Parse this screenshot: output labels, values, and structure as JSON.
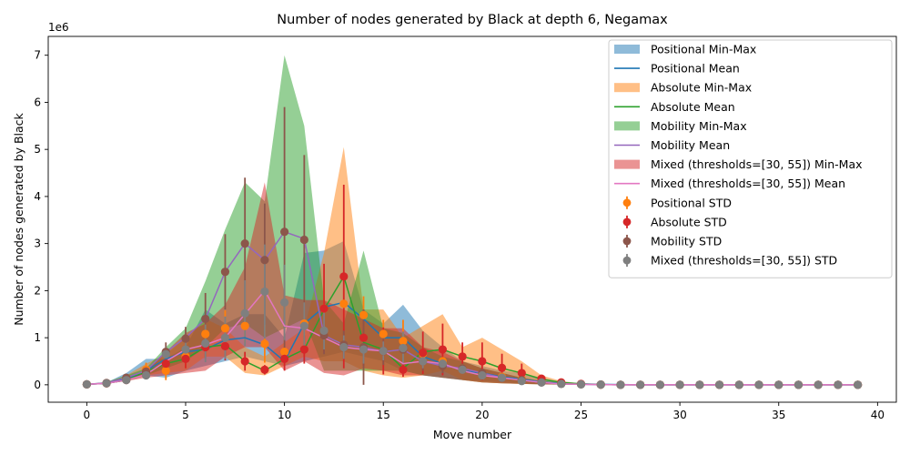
{
  "chart_data": {
    "type": "line",
    "title": "Number of nodes generated by Black at depth 6, Negamax",
    "xlabel": "Move number",
    "ylabel": "Number of nodes generated by Black",
    "y_multiplier_label": "1e6",
    "xlim": [
      -1.95,
      40.95
    ],
    "ylim": [
      -0.37,
      7.4
    ],
    "x_ticks": [
      0,
      5,
      10,
      15,
      20,
      25,
      30,
      35,
      40
    ],
    "y_ticks": [
      0,
      1,
      2,
      3,
      4,
      5,
      6,
      7
    ],
    "legend_position": "upper right",
    "grid": false,
    "x": [
      0,
      1,
      2,
      3,
      4,
      5,
      6,
      7,
      8,
      9,
      10,
      11,
      12,
      13,
      14,
      15,
      16,
      17,
      18,
      19,
      20,
      21,
      22,
      23,
      24,
      25,
      26,
      27,
      28,
      29,
      30,
      31,
      32,
      33,
      34,
      35,
      36,
      37,
      38,
      39
    ],
    "series": [
      {
        "name": "Positional",
        "min_max_label": "Positional Min-Max",
        "mean_label": "Positional Mean",
        "std_label": "Positional STD",
        "band_color": "#1f77b4",
        "line_color": "#1f77b4",
        "marker_color": "#ff7f0e",
        "errbar_color": "#ff7f0e",
        "mean": [
          0.01,
          0.03,
          0.12,
          0.3,
          0.55,
          0.7,
          0.75,
          0.95,
          1.0,
          0.85,
          0.5,
          1.3,
          1.65,
          1.75,
          1.4,
          1.0,
          1.0,
          0.6,
          0.45,
          0.3,
          0.25,
          0.17,
          0.12,
          0.06,
          0.03,
          0.02,
          0.01,
          0.005,
          0,
          0,
          0,
          0,
          0,
          0,
          0,
          0,
          0,
          0,
          0,
          0
        ],
        "min": [
          0.005,
          0.02,
          0.08,
          0.2,
          0.15,
          0.3,
          0.4,
          0.5,
          0.6,
          0.5,
          0.4,
          0.5,
          0.6,
          0.7,
          0.6,
          0.5,
          0.3,
          0.2,
          0.15,
          0.1,
          0.08,
          0.05,
          0.03,
          0.01,
          0.005,
          0,
          0,
          0,
          0,
          0,
          0,
          0,
          0,
          0,
          0,
          0,
          0,
          0,
          0,
          0
        ],
        "max": [
          0.02,
          0.05,
          0.25,
          0.55,
          0.55,
          0.8,
          1.6,
          1.3,
          1.5,
          1.5,
          1.0,
          2.8,
          2.85,
          3.05,
          1.6,
          1.3,
          1.7,
          1.15,
          0.8,
          0.5,
          0.4,
          0.3,
          0.25,
          0.15,
          0.06,
          0.03,
          0.02,
          0.01,
          0,
          0,
          0,
          0,
          0,
          0,
          0,
          0,
          0,
          0,
          0,
          0
        ],
        "std_center": [
          0.01,
          0.03,
          0.12,
          0.32,
          0.3,
          0.6,
          1.08,
          1.2,
          1.25,
          0.87,
          0.7,
          1.3,
          1.62,
          1.72,
          1.48,
          1.08,
          0.93,
          0.66,
          0.5,
          0.35,
          0.23,
          0.17,
          0.12,
          0.06,
          0.03,
          0.015,
          0.005,
          0,
          0,
          0,
          0,
          0,
          0,
          0,
          0,
          0,
          0,
          0,
          0,
          0
        ],
        "std": [
          0.005,
          0.01,
          0.05,
          0.15,
          0.2,
          0.25,
          0.25,
          0.38,
          0.35,
          0.4,
          0.3,
          0.6,
          0.6,
          0.3,
          0.4,
          0.3,
          0.45,
          0.3,
          0.15,
          0.1,
          0.08,
          0.05,
          0.04,
          0.02,
          0.01,
          0.005,
          0,
          0,
          0,
          0,
          0,
          0,
          0,
          0,
          0,
          0,
          0,
          0,
          0,
          0
        ]
      },
      {
        "name": "Absolute",
        "min_max_label": "Absolute Min-Max",
        "mean_label": "Absolute Mean",
        "std_label": "Absolute STD",
        "band_color": "#ff7f0e",
        "line_color": "#2ca02c",
        "marker_color": "#d62728",
        "errbar_color": "#d62728",
        "mean": [
          0.01,
          0.03,
          0.1,
          0.28,
          0.45,
          0.55,
          0.8,
          0.85,
          0.5,
          0.3,
          0.55,
          0.75,
          1.6,
          2.3,
          0.9,
          0.75,
          0.35,
          0.7,
          0.75,
          0.6,
          0.5,
          0.35,
          0.25,
          0.12,
          0.05,
          0.02,
          0.005,
          0,
          0,
          0,
          0,
          0,
          0,
          0,
          0,
          0,
          0,
          0,
          0,
          0
        ],
        "min": [
          0.005,
          0.02,
          0.08,
          0.2,
          0.25,
          0.3,
          0.6,
          0.6,
          0.25,
          0.2,
          0.4,
          0.6,
          0.5,
          0.5,
          0.3,
          0.2,
          0.15,
          0.2,
          0.3,
          0.1,
          0.05,
          0.03,
          0.02,
          0.01,
          0.005,
          0,
          0,
          0,
          0,
          0,
          0,
          0,
          0,
          0,
          0,
          0,
          0,
          0,
          0,
          0
        ],
        "max": [
          0.02,
          0.05,
          0.2,
          0.45,
          0.65,
          1.0,
          1.4,
          1.2,
          0.8,
          0.6,
          0.9,
          1.2,
          2.8,
          5.05,
          1.6,
          1.6,
          1.0,
          1.25,
          1.5,
          0.8,
          1.0,
          0.75,
          0.5,
          0.2,
          0.08,
          0.03,
          0.01,
          0,
          0,
          0,
          0,
          0,
          0,
          0,
          0,
          0,
          0,
          0,
          0,
          0
        ],
        "std_center": [
          0.01,
          0.03,
          0.1,
          0.28,
          0.45,
          0.55,
          0.8,
          0.82,
          0.5,
          0.32,
          0.55,
          0.75,
          1.62,
          2.3,
          1.0,
          0.72,
          0.32,
          0.68,
          0.75,
          0.6,
          0.5,
          0.36,
          0.25,
          0.13,
          0.05,
          0.02,
          0.005,
          0,
          0,
          0,
          0,
          0,
          0,
          0,
          0,
          0,
          0,
          0,
          0,
          0
        ],
        "std": [
          0.005,
          0.01,
          0.03,
          0.1,
          0.15,
          0.2,
          0.25,
          0.3,
          0.2,
          0.1,
          0.25,
          0.3,
          0.95,
          1.95,
          0.6,
          0.5,
          0.15,
          0.45,
          0.55,
          0.3,
          0.4,
          0.3,
          0.2,
          0.06,
          0.02,
          0.01,
          0,
          0,
          0,
          0,
          0,
          0,
          0,
          0,
          0,
          0,
          0,
          0,
          0,
          0
        ]
      },
      {
        "name": "Mobility",
        "min_max_label": "Mobility Min-Max",
        "mean_label": "Mobility Mean",
        "std_label": "Mobility STD",
        "band_color": "#2ca02c",
        "line_color": "#9467bd",
        "marker_color": "#8c564b",
        "errbar_color": "#8c564b",
        "mean": [
          0.01,
          0.04,
          0.15,
          0.3,
          0.7,
          1.0,
          1.4,
          2.4,
          3.0,
          2.65,
          3.25,
          3.1,
          1.05,
          0.85,
          0.8,
          0.7,
          0.75,
          0.5,
          0.4,
          0.35,
          0.25,
          0.15,
          0.1,
          0.05,
          0.02,
          0.01,
          0.005,
          0,
          0,
          0,
          0,
          0,
          0,
          0,
          0,
          0,
          0,
          0,
          0,
          0
        ],
        "min": [
          0.005,
          0.02,
          0.1,
          0.2,
          0.35,
          0.5,
          0.8,
          1.2,
          1.3,
          1.0,
          1.2,
          1.4,
          0.3,
          0.3,
          0.3,
          0.3,
          0.3,
          0.2,
          0.15,
          0.1,
          0.05,
          0.03,
          0.02,
          0.01,
          0.005,
          0,
          0,
          0,
          0,
          0,
          0,
          0,
          0,
          0,
          0,
          0,
          0,
          0,
          0,
          0
        ],
        "max": [
          0.02,
          0.06,
          0.2,
          0.35,
          0.8,
          1.2,
          2.2,
          3.3,
          4.3,
          3.9,
          7.0,
          5.5,
          1.8,
          1.3,
          2.85,
          1.2,
          1.1,
          0.8,
          0.6,
          0.5,
          0.35,
          0.25,
          0.15,
          0.08,
          0.04,
          0.02,
          0.01,
          0,
          0,
          0,
          0,
          0,
          0,
          0,
          0,
          0,
          0,
          0,
          0,
          0
        ],
        "std_center": [
          0.01,
          0.04,
          0.15,
          0.28,
          0.7,
          0.98,
          1.4,
          2.4,
          3.0,
          2.65,
          3.25,
          3.08,
          1.05,
          0.85,
          0.8,
          0.72,
          0.75,
          0.5,
          0.4,
          0.35,
          0.25,
          0.15,
          0.1,
          0.05,
          0.02,
          0.01,
          0.005,
          0,
          0,
          0,
          0,
          0,
          0,
          0,
          0,
          0,
          0,
          0,
          0,
          0
        ],
        "std": [
          0.005,
          0.01,
          0.03,
          0.08,
          0.2,
          0.25,
          0.55,
          0.8,
          1.4,
          1.2,
          2.65,
          1.8,
          0.4,
          0.3,
          0.8,
          0.3,
          0.25,
          0.2,
          0.15,
          0.1,
          0.08,
          0.05,
          0.03,
          0.02,
          0.01,
          0.005,
          0,
          0,
          0,
          0,
          0,
          0,
          0,
          0,
          0,
          0,
          0,
          0,
          0,
          0
        ]
      },
      {
        "name": "Mixed (thresholds=[30, 55])",
        "min_max_label": "Mixed (thresholds=[30, 55]) Min-Max",
        "mean_label": "Mixed (thresholds=[30, 55]) Mean",
        "std_label": "Mixed (thresholds=[30, 55]) STD",
        "band_color": "#d62728",
        "line_color": "#e377c2",
        "marker_color": "#7f7f7f",
        "errbar_color": "#7f7f7f",
        "mean": [
          0.01,
          0.03,
          0.1,
          0.22,
          0.5,
          0.75,
          0.85,
          1.0,
          1.5,
          2.0,
          1.25,
          1.2,
          1.0,
          0.8,
          0.75,
          0.72,
          0.45,
          0.5,
          0.45,
          0.3,
          0.2,
          0.15,
          0.1,
          0.05,
          0.02,
          0.01,
          0.005,
          0,
          0,
          0,
          0,
          0,
          0,
          0,
          0,
          0,
          0,
          0,
          0,
          0
        ],
        "min": [
          0.005,
          0.02,
          0.08,
          0.15,
          0.2,
          0.25,
          0.3,
          0.6,
          0.8,
          0.8,
          0.3,
          0.5,
          0.25,
          0.2,
          0.35,
          0.3,
          0.2,
          0.2,
          0.15,
          0.1,
          0.05,
          0.03,
          0.02,
          0.01,
          0.005,
          0,
          0,
          0,
          0,
          0,
          0,
          0,
          0,
          0,
          0,
          0,
          0,
          0,
          0,
          0
        ],
        "max": [
          0.02,
          0.05,
          0.15,
          0.3,
          0.7,
          1.1,
          1.3,
          1.7,
          2.5,
          4.3,
          1.9,
          1.8,
          1.8,
          1.6,
          1.4,
          1.2,
          1.2,
          0.8,
          0.7,
          0.5,
          0.35,
          0.25,
          0.15,
          0.08,
          0.04,
          0.02,
          0.01,
          0,
          0,
          0,
          0,
          0,
          0,
          0,
          0,
          0,
          0,
          0,
          0,
          0
        ],
        "std_center": [
          0.01,
          0.03,
          0.1,
          0.2,
          0.65,
          0.75,
          0.88,
          1.0,
          1.52,
          1.98,
          1.75,
          1.25,
          1.15,
          0.8,
          0.75,
          0.72,
          0.78,
          0.5,
          0.45,
          0.32,
          0.2,
          0.15,
          0.08,
          0.05,
          0.02,
          0.01,
          0.005,
          0,
          0,
          0,
          0,
          0,
          0,
          0,
          0,
          0,
          0,
          0,
          0,
          0
        ],
        "std": [
          0.005,
          0.01,
          0.03,
          0.05,
          0.15,
          0.2,
          0.4,
          0.45,
          0.7,
          1.0,
          0.8,
          0.5,
          0.4,
          0.25,
          0.3,
          0.2,
          0.35,
          0.15,
          0.1,
          0.08,
          0.05,
          0.04,
          0.02,
          0.02,
          0.01,
          0.005,
          0,
          0,
          0,
          0,
          0,
          0,
          0,
          0,
          0,
          0,
          0,
          0,
          0,
          0
        ]
      }
    ]
  }
}
